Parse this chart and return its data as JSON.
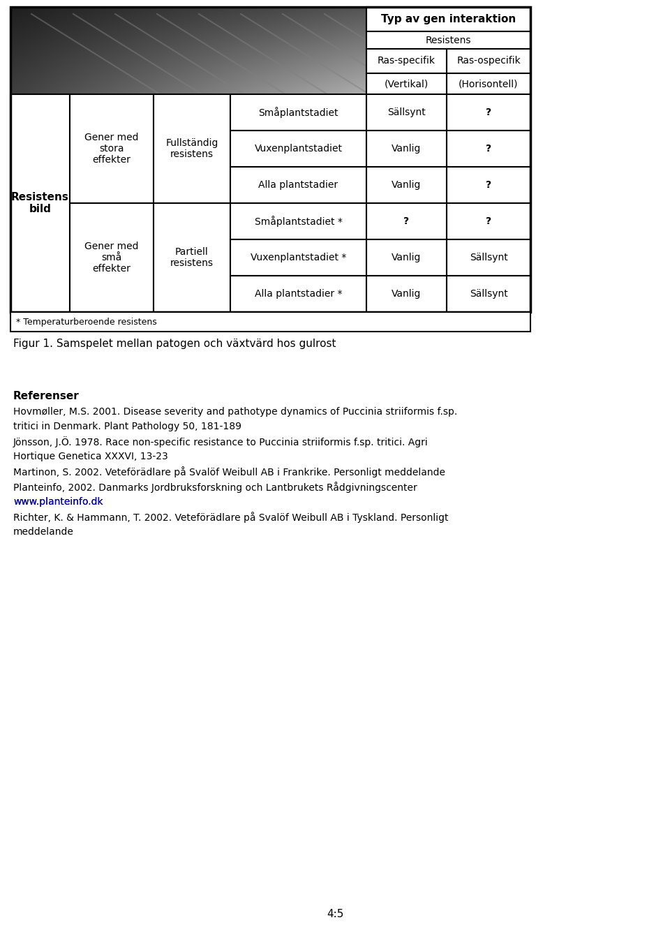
{
  "bg_color": "#ffffff",
  "page_width": 9.6,
  "page_height": 13.38,
  "table": {
    "col0_label": "Resistens\nbild",
    "col1_labels": [
      "Gener med\nstora\neffekter",
      "Gener med\nsmå\neffekter"
    ],
    "col2_labels": [
      "Fullständig\nresistens",
      "Partiell\nresistens"
    ],
    "col3_labels": [
      "Småplantstadiet",
      "Vuxenplantstadiet",
      "Alla plantstadier",
      "Småplantstadiet *",
      "Vuxenplantstadiet *",
      "Alla plantstadier *"
    ],
    "col4_labels": [
      "Sällsynt",
      "Vanlig",
      "Vanlig",
      "?",
      "Vanlig",
      "Vanlig"
    ],
    "col5_labels": [
      "?",
      "?",
      "?",
      "?",
      "Sällsynt",
      "Sällsynt"
    ],
    "header_row1": "Typ av gen interaktion",
    "header_row2": "Resistens",
    "header_col4": "Ras-specifik\n(Vertikal)",
    "header_col5": "Ras-ospecifik\n(Horisontell)"
  },
  "footnote": "* Temperaturberoende resistens",
  "figure_caption": "Figur 1. Samspelet mellan patogen och växtvärd hos gulrost",
  "references_title": "Referenser",
  "references": [
    {
      "text_parts": [
        {
          "text": "Hovmøller, M.S. 2001. Disease severity and pathotype dynamics of ",
          "italic": false
        },
        {
          "text": "Puccinia striiformis",
          "italic": true
        },
        {
          "text": " f.sp.\n",
          "italic": false
        },
        {
          "text": "tritici",
          "italic": true
        },
        {
          "text": " in Denmark. Plant Pathology 50, 181-189",
          "italic": false
        }
      ]
    },
    {
      "text_parts": [
        {
          "text": "Jönsson, J.Ö. 1978. Race non-specific resistance to ",
          "italic": false
        },
        {
          "text": "Puccinia striiformis",
          "italic": true
        },
        {
          "text": " f.sp. ",
          "italic": false
        },
        {
          "text": "tritici",
          "italic": true
        },
        {
          "text": ". Agri\nHortique Genetica XXXVI, 13-23",
          "italic": false
        }
      ]
    },
    {
      "text_parts": [
        {
          "text": "Martinon, S. 2002. Veteförädlare på Svalöf Weibull AB i Frankrike. Personligt meddelande",
          "italic": false
        }
      ]
    },
    {
      "text_parts": [
        {
          "text": "Planteinfo, 2002. Danmarks Jordbruksforskning och Lantbrukets Rådgivningscenter\n",
          "italic": false
        },
        {
          "text": "www.planteinfo.dk",
          "italic": false,
          "url": true
        }
      ]
    },
    {
      "text_parts": [
        {
          "text": "Richter, K. & Hammann, T. 2002. Veteförädlare på Svalöf Weibull AB i Tyskland. Personligt\nmeddelande",
          "italic": false
        }
      ]
    }
  ],
  "page_num": "4:5"
}
